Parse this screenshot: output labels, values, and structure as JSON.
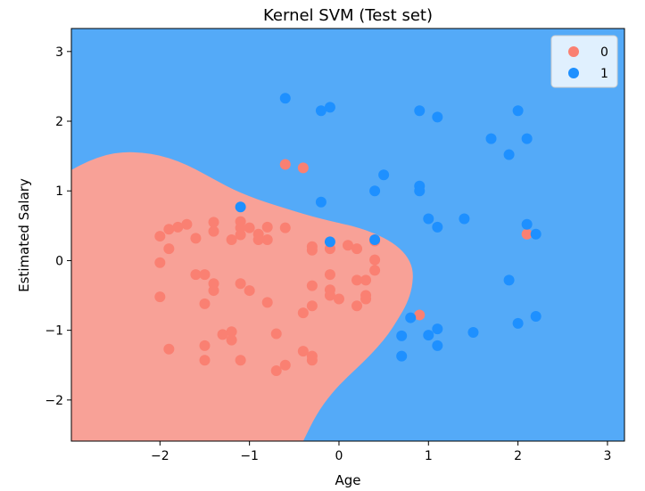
{
  "chart_data": {
    "type": "scatter",
    "title": "Kernel SVM (Test set)",
    "xlabel": "Age",
    "ylabel": "Estimated Salary",
    "xlim": [
      -2.99,
      3.19
    ],
    "ylim": [
      -2.59,
      3.33
    ],
    "xticks": [
      -2,
      -1,
      0,
      1,
      2,
      3
    ],
    "yticks": [
      -2,
      -1,
      0,
      1,
      2,
      3
    ],
    "xtick_labels": [
      "−2",
      "−1",
      "0",
      "1",
      "2",
      "3"
    ],
    "ytick_labels": [
      "−2",
      "−1",
      "0",
      "1",
      "2",
      "3"
    ],
    "legend_position": "top-right",
    "grid": false,
    "colors": {
      "region_0": "#f8a197",
      "region_1": "#54aaf8",
      "point_0": "#fa8072",
      "point_1": "#1e90ff"
    },
    "decision_boundary": [
      [
        -2.99,
        1.3
      ],
      [
        -2.8,
        1.43
      ],
      [
        -2.6,
        1.52
      ],
      [
        -2.4,
        1.56
      ],
      [
        -2.2,
        1.55
      ],
      [
        -2.0,
        1.51
      ],
      [
        -1.8,
        1.43
      ],
      [
        -1.6,
        1.31
      ],
      [
        -1.4,
        1.17
      ],
      [
        -1.2,
        1.03
      ],
      [
        -1.0,
        0.92
      ],
      [
        -0.8,
        0.83
      ],
      [
        -0.6,
        0.75
      ],
      [
        -0.4,
        0.67
      ],
      [
        -0.2,
        0.6
      ],
      [
        0.0,
        0.54
      ],
      [
        0.2,
        0.48
      ],
      [
        0.4,
        0.39
      ],
      [
        0.6,
        0.26
      ],
      [
        0.75,
        0.09
      ],
      [
        0.83,
        -0.12
      ],
      [
        0.82,
        -0.38
      ],
      [
        0.76,
        -0.62
      ],
      [
        0.66,
        -0.84
      ],
      [
        0.55,
        -1.06
      ],
      [
        0.42,
        -1.26
      ],
      [
        0.27,
        -1.46
      ],
      [
        0.1,
        -1.66
      ],
      [
        -0.08,
        -1.9
      ],
      [
        -0.25,
        -2.2
      ],
      [
        -0.4,
        -2.59
      ]
    ],
    "series": [
      {
        "name": "0",
        "points": [
          [
            -2.0,
            0.35
          ],
          [
            -1.9,
            0.45
          ],
          [
            -1.8,
            0.48
          ],
          [
            -1.7,
            0.52
          ],
          [
            -1.6,
            0.32
          ],
          [
            -1.9,
            0.17
          ],
          [
            -2.0,
            -0.03
          ],
          [
            -2.0,
            -0.52
          ],
          [
            -1.6,
            -0.2
          ],
          [
            -1.5,
            -0.2
          ],
          [
            -1.4,
            -0.33
          ],
          [
            -1.4,
            -0.43
          ],
          [
            -1.5,
            -0.62
          ],
          [
            -1.4,
            0.55
          ],
          [
            -1.4,
            0.42
          ],
          [
            -1.2,
            0.3
          ],
          [
            -1.1,
            0.56
          ],
          [
            -1.1,
            0.47
          ],
          [
            -1.0,
            0.47
          ],
          [
            -1.1,
            0.37
          ],
          [
            -0.9,
            0.38
          ],
          [
            -0.9,
            0.3
          ],
          [
            -0.8,
            0.48
          ],
          [
            -0.8,
            0.3
          ],
          [
            -0.6,
            0.47
          ],
          [
            -1.1,
            -0.33
          ],
          [
            -1.0,
            -0.43
          ],
          [
            -0.8,
            -0.6
          ],
          [
            -1.9,
            -1.27
          ],
          [
            -1.5,
            -1.22
          ],
          [
            -1.5,
            -1.43
          ],
          [
            -1.3,
            -1.06
          ],
          [
            -1.2,
            -1.02
          ],
          [
            -1.2,
            -1.14
          ],
          [
            -1.1,
            -1.43
          ],
          [
            -0.7,
            -1.05
          ],
          [
            -0.7,
            -1.58
          ],
          [
            -0.6,
            -1.5
          ],
          [
            -0.4,
            -1.3
          ],
          [
            -0.3,
            -1.37
          ],
          [
            -0.3,
            -1.43
          ],
          [
            -0.4,
            -0.75
          ],
          [
            -0.3,
            -0.65
          ],
          [
            -0.3,
            -0.36
          ],
          [
            -0.1,
            -0.42
          ],
          [
            -0.1,
            -0.5
          ],
          [
            0.0,
            -0.55
          ],
          [
            -0.1,
            -0.2
          ],
          [
            -0.1,
            0.17
          ],
          [
            -0.3,
            0.2
          ],
          [
            -0.3,
            0.15
          ],
          [
            0.1,
            0.22
          ],
          [
            0.2,
            0.17
          ],
          [
            0.2,
            -0.28
          ],
          [
            0.3,
            -0.28
          ],
          [
            0.3,
            -0.5
          ],
          [
            0.3,
            -0.55
          ],
          [
            0.2,
            -0.65
          ],
          [
            0.4,
            -0.14
          ],
          [
            0.4,
            0.01
          ],
          [
            0.4,
            0.28
          ],
          [
            -0.6,
            1.38
          ],
          [
            -0.4,
            1.33
          ],
          [
            0.9,
            -0.78
          ],
          [
            2.1,
            0.38
          ]
        ]
      },
      {
        "name": "1",
        "points": [
          [
            -0.6,
            2.33
          ],
          [
            -0.2,
            2.15
          ],
          [
            -0.1,
            2.2
          ],
          [
            0.9,
            2.15
          ],
          [
            1.1,
            2.06
          ],
          [
            2.0,
            2.15
          ],
          [
            1.7,
            1.75
          ],
          [
            2.1,
            1.75
          ],
          [
            1.9,
            1.52
          ],
          [
            0.5,
            1.23
          ],
          [
            0.4,
            1.0
          ],
          [
            0.9,
            1.07
          ],
          [
            0.9,
            1.0
          ],
          [
            -0.2,
            0.84
          ],
          [
            1.0,
            0.6
          ],
          [
            1.1,
            0.48
          ],
          [
            1.4,
            0.6
          ],
          [
            2.1,
            0.52
          ],
          [
            2.2,
            0.38
          ],
          [
            -1.1,
            0.77
          ],
          [
            -0.1,
            0.27
          ],
          [
            0.4,
            0.3
          ],
          [
            0.8,
            -0.82
          ],
          [
            0.7,
            -1.08
          ],
          [
            0.7,
            -1.37
          ],
          [
            1.0,
            -1.07
          ],
          [
            1.1,
            -0.98
          ],
          [
            1.1,
            -1.22
          ],
          [
            1.5,
            -1.03
          ],
          [
            1.9,
            -0.28
          ],
          [
            2.0,
            -0.9
          ],
          [
            2.2,
            -0.8
          ]
        ]
      }
    ]
  }
}
